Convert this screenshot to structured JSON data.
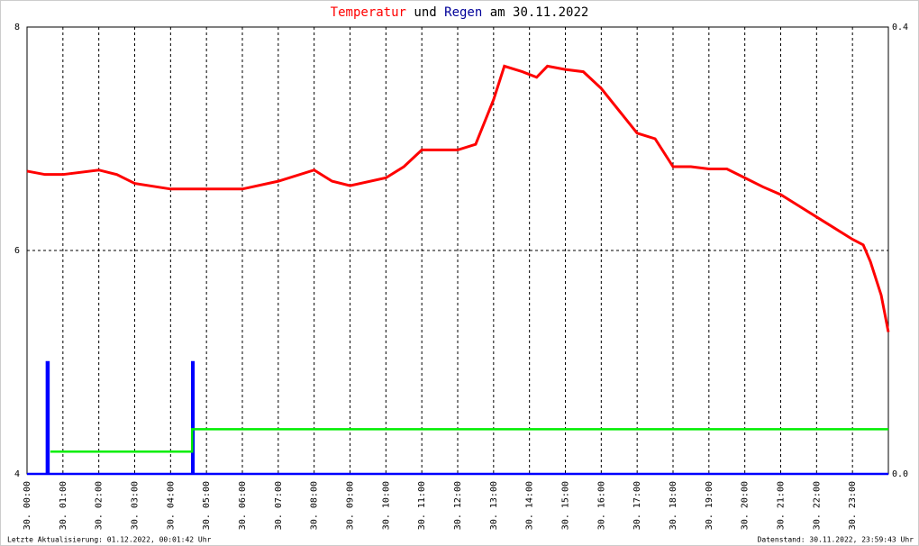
{
  "chart_data": {
    "type": "line",
    "title": [
      "Temperatur",
      "und",
      "Regen",
      "am 30.11.2022"
    ],
    "footer_left": "Letzte Aktualisierung: 01.12.2022, 00:01:42 Uhr",
    "footer_right": "Datenstand: 30.11.2022, 23:59:43 Uhr",
    "xlim": [
      0,
      24
    ],
    "xticks": [
      {
        "value": 0,
        "label": "30. 00:00"
      },
      {
        "value": 1,
        "label": "30. 01:00"
      },
      {
        "value": 2,
        "label": "30. 02:00"
      },
      {
        "value": 3,
        "label": "30. 03:00"
      },
      {
        "value": 4,
        "label": "30. 04:00"
      },
      {
        "value": 5,
        "label": "30. 05:00"
      },
      {
        "value": 6,
        "label": "30. 06:00"
      },
      {
        "value": 7,
        "label": "30. 07:00"
      },
      {
        "value": 8,
        "label": "30. 08:00"
      },
      {
        "value": 9,
        "label": "30. 09:00"
      },
      {
        "value": 10,
        "label": "30. 10:00"
      },
      {
        "value": 11,
        "label": "30. 11:00"
      },
      {
        "value": 12,
        "label": "30. 12:00"
      },
      {
        "value": 13,
        "label": "30. 13:00"
      },
      {
        "value": 14,
        "label": "30. 14:00"
      },
      {
        "value": 15,
        "label": "30. 15:00"
      },
      {
        "value": 16,
        "label": "30. 16:00"
      },
      {
        "value": 17,
        "label": "30. 17:00"
      },
      {
        "value": 18,
        "label": "30. 18:00"
      },
      {
        "value": 19,
        "label": "30. 19:00"
      },
      {
        "value": 20,
        "label": "30. 20:00"
      },
      {
        "value": 21,
        "label": "30. 21:00"
      },
      {
        "value": 22,
        "label": "30. 22:00"
      },
      {
        "value": 23,
        "label": "30. 23:00"
      }
    ],
    "ylim": [
      4,
      8
    ],
    "yticks": [
      4,
      6,
      8
    ],
    "y2lim": [
      0,
      0.4
    ],
    "y2ticks": [
      {
        "value": 0,
        "label": "0.0"
      },
      0.4
    ],
    "grid": true,
    "series": [
      {
        "color": "#ff0000",
        "x": [
          0,
          0.5,
          1,
          2,
          2.5,
          3,
          4,
          5,
          6,
          7,
          8,
          8.5,
          9,
          10,
          10.5,
          11,
          12,
          12.5,
          13,
          13.3,
          13.8,
          14.2,
          14.5,
          15,
          15.5,
          16,
          16.5,
          17,
          17.5,
          18,
          18.5,
          19,
          19.5,
          20,
          20.5,
          21,
          21.5,
          22,
          22.5,
          23,
          23.3,
          23.5,
          23.8,
          24
        ],
        "values": [
          6.71,
          6.68,
          6.68,
          6.72,
          6.68,
          6.6,
          6.55,
          6.55,
          6.55,
          6.62,
          6.72,
          6.62,
          6.58,
          6.65,
          6.75,
          6.9,
          6.9,
          6.95,
          7.35,
          7.65,
          7.6,
          7.55,
          7.65,
          7.62,
          7.6,
          7.45,
          7.25,
          7.05,
          7.0,
          6.75,
          6.75,
          6.73,
          6.73,
          6.65,
          6.57,
          6.5,
          6.4,
          6.3,
          6.2,
          6.1,
          6.05,
          5.9,
          5.6,
          5.27
        ]
      },
      {
        "color": "#0000ff",
        "axis": "y2",
        "x": [
          0,
          0.55,
          0.55,
          0.6,
          0.6,
          4.6,
          4.6,
          4.64,
          4.64,
          24
        ],
        "values": [
          0,
          0,
          0.1,
          0.1,
          0,
          0,
          0.1,
          0.1,
          0,
          0
        ]
      },
      {
        "color": "#00ee00",
        "axis": "y2",
        "x": [
          0.65,
          4.6,
          4.6,
          24
        ],
        "values": [
          0.02,
          0.02,
          0.04,
          0.04
        ]
      }
    ]
  }
}
